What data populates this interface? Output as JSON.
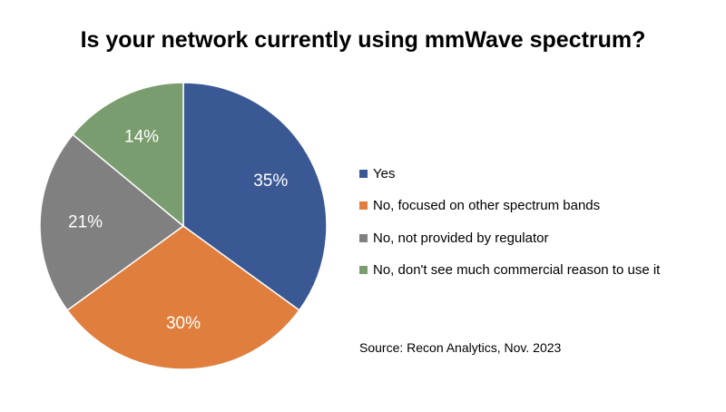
{
  "chart_data": {
    "type": "pie",
    "title": "Is your network currently using mmWave spectrum?",
    "slices": [
      {
        "label": "Yes",
        "value": 35,
        "value_label": "35%",
        "color": "#3a5894"
      },
      {
        "label": "No, focused on other spectrum bands",
        "value": 30,
        "value_label": "30%",
        "color": "#e07f3d"
      },
      {
        "label": "No, not provided by regulator",
        "value": 21,
        "value_label": "21%",
        "color": "#808080"
      },
      {
        "label": "No, don't see much commercial reason to use it",
        "value": 14,
        "value_label": "14%",
        "color": "#7a9d6f"
      }
    ],
    "legend_placement": "right",
    "data_label_color": "#ffffff"
  },
  "source": "Source: Recon Analytics, Nov. 2023"
}
